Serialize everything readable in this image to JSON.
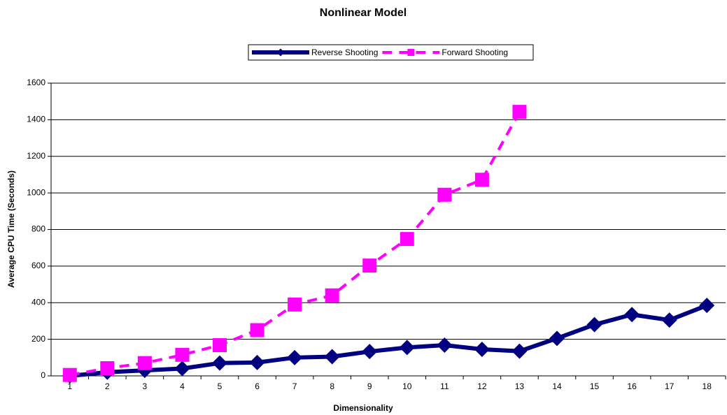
{
  "chart_data": {
    "type": "line",
    "title": "Nonlinear Model",
    "x_label": "Dimensionality",
    "y_label": "Average CPU Time (Seconds)",
    "categories": [
      "1",
      "2",
      "3",
      "4",
      "5",
      "6",
      "7",
      "8",
      "9",
      "10",
      "11",
      "12",
      "13",
      "14",
      "15",
      "16",
      "17",
      "18"
    ],
    "series": [
      {
        "name": "Reverse Shooting",
        "color": "#000080",
        "marker": "diamond",
        "dash": false,
        "values": [
          0,
          20,
          30,
          40,
          70,
          73,
          100,
          105,
          133,
          155,
          168,
          145,
          135,
          205,
          280,
          335,
          305,
          385
        ]
      },
      {
        "name": "Forward Shooting",
        "color": "#ff00ff",
        "marker": "square",
        "dash": true,
        "values": [
          5,
          42,
          70,
          115,
          168,
          250,
          390,
          440,
          603,
          748,
          990,
          1072,
          1443,
          null,
          null,
          null,
          null,
          null
        ]
      }
    ],
    "ylim": [
      0,
      1600
    ],
    "yticks": [
      0,
      200,
      400,
      600,
      800,
      1000,
      1200,
      1400,
      1600
    ],
    "grid": true,
    "legend": "top"
  }
}
